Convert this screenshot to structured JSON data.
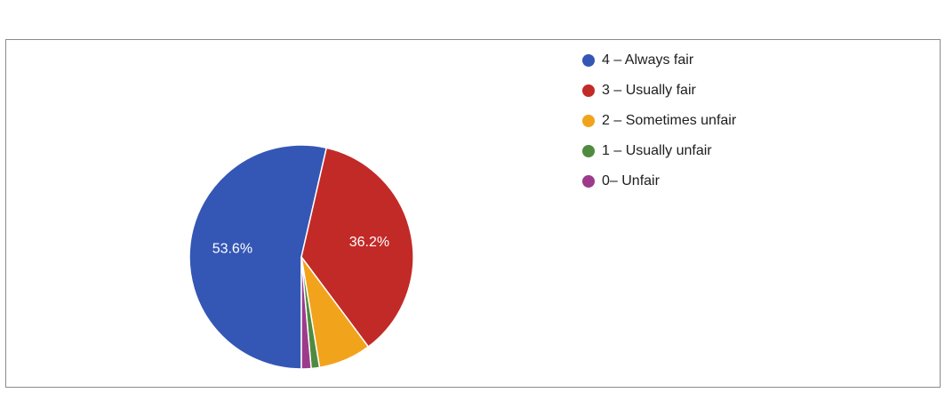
{
  "chart_data": {
    "type": "pie",
    "title": "",
    "categories": [
      "4 – Always fair",
      "3 – Usually fair",
      "2 – Sometimes unfair",
      "1 – Usually unfair",
      "0– Unfair"
    ],
    "values": [
      53.6,
      36.2,
      7.6,
      1.2,
      1.4
    ],
    "data_labels": [
      "53.6%",
      "36.2%",
      "",
      "",
      ""
    ],
    "colors": [
      "#3457b5",
      "#c22a27",
      "#f2a31c",
      "#4f8b3f",
      "#9c3b8c"
    ],
    "legend": "right",
    "start_angle_deg": 90,
    "direction": "clockwise"
  }
}
